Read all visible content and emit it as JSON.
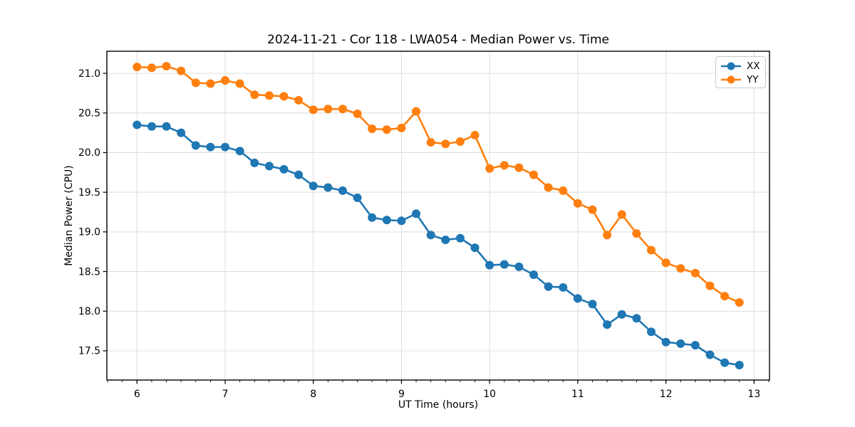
{
  "chart_data": {
    "type": "line",
    "title": "2024-11-21 - Cor 118 - LWA054 - Median Power vs. Time",
    "xlabel": "UT Time (hours)",
    "ylabel": "Median Power (CPU)",
    "xlim": [
      5.6583,
      13.175
    ],
    "ylim": [
      17.1315,
      21.2785
    ],
    "x_ticks": [
      6,
      7,
      8,
      9,
      10,
      11,
      12,
      13
    ],
    "y_ticks": [
      17.5,
      18.0,
      18.5,
      19.0,
      19.5,
      20.0,
      20.5,
      21.0
    ],
    "x_minor_step": 0.166667,
    "grid": "major-on",
    "grid_color": "#dcdcdc",
    "spine_color": "#000000",
    "legend_position": "upper-right",
    "marker": "circle",
    "x": [
      6.0,
      6.1667,
      6.3333,
      6.5,
      6.6667,
      6.8333,
      7.0,
      7.1667,
      7.3333,
      7.5,
      7.6667,
      7.8333,
      8.0,
      8.1667,
      8.3333,
      8.5,
      8.6667,
      8.8333,
      9.0,
      9.1667,
      9.3333,
      9.5,
      9.6667,
      9.8333,
      10.0,
      10.1667,
      10.3333,
      10.5,
      10.6667,
      10.8333,
      11.0,
      11.1667,
      11.3333,
      11.5,
      11.6667,
      11.8333,
      12.0,
      12.1667,
      12.3333,
      12.5,
      12.6667,
      12.8333
    ],
    "series": [
      {
        "name": "XX",
        "color": "#1f77b4",
        "values": [
          20.35,
          20.33,
          20.33,
          20.25,
          20.09,
          20.07,
          20.07,
          20.02,
          19.87,
          19.83,
          19.79,
          19.72,
          19.58,
          19.56,
          19.52,
          19.43,
          19.18,
          19.15,
          19.14,
          19.23,
          18.96,
          18.9,
          18.92,
          18.8,
          18.58,
          18.59,
          18.56,
          18.46,
          18.31,
          18.3,
          18.16,
          18.09,
          17.83,
          17.96,
          17.91,
          17.74,
          17.61,
          17.59,
          17.57,
          17.45,
          17.35,
          17.32
        ]
      },
      {
        "name": "YY",
        "color": "#ff7f0e",
        "values": [
          21.08,
          21.07,
          21.09,
          21.03,
          20.88,
          20.87,
          20.91,
          20.87,
          20.73,
          20.72,
          20.71,
          20.66,
          20.54,
          20.55,
          20.55,
          20.49,
          20.3,
          20.29,
          20.31,
          20.52,
          20.13,
          20.11,
          20.14,
          20.22,
          19.8,
          19.84,
          19.81,
          19.72,
          19.56,
          19.52,
          19.36,
          19.28,
          18.96,
          19.22,
          18.98,
          18.77,
          18.61,
          18.54,
          18.48,
          18.32,
          18.19,
          18.11
        ]
      }
    ]
  }
}
